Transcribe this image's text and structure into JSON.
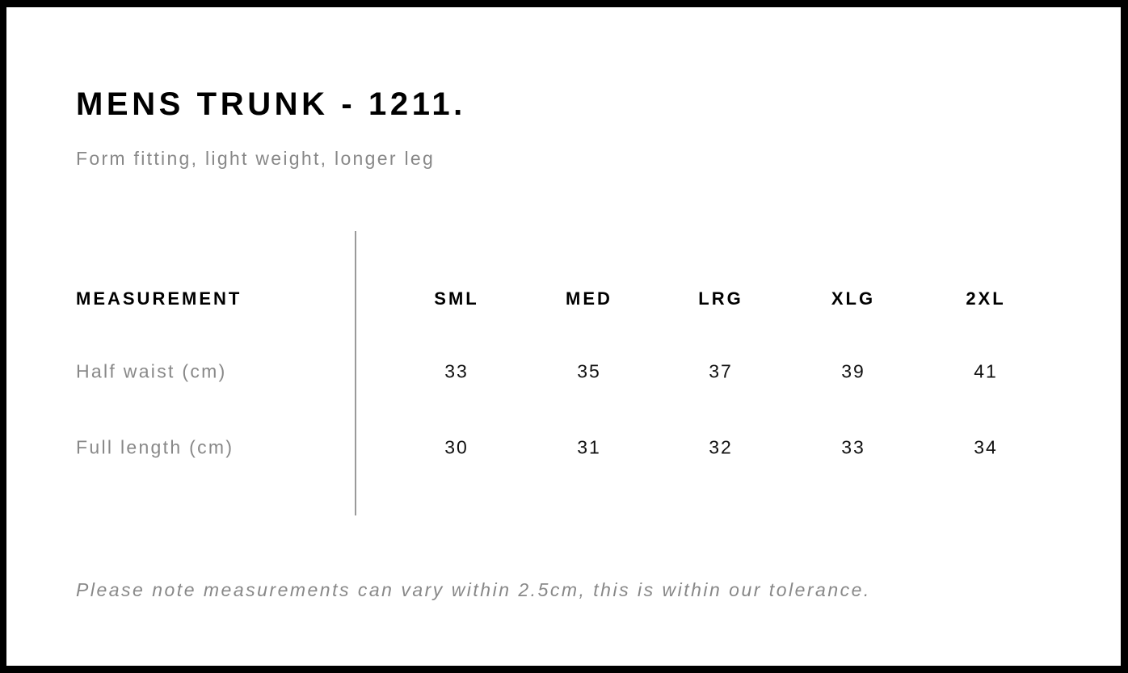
{
  "title": "MENS TRUNK - 1211.",
  "subtitle": "Form fitting, light weight, longer leg",
  "table": {
    "header_label": "MEASUREMENT",
    "sizes": [
      "SML",
      "MED",
      "LRG",
      "XLG",
      "2XL"
    ],
    "rows": [
      {
        "label": "Half waist (cm)",
        "values": [
          "33",
          "35",
          "37",
          "39",
          "41"
        ]
      },
      {
        "label": "Full length (cm)",
        "values": [
          "30",
          "31",
          "32",
          "33",
          "34"
        ]
      }
    ]
  },
  "note": "Please note measurements can vary within 2.5cm, this is within our tolerance."
}
